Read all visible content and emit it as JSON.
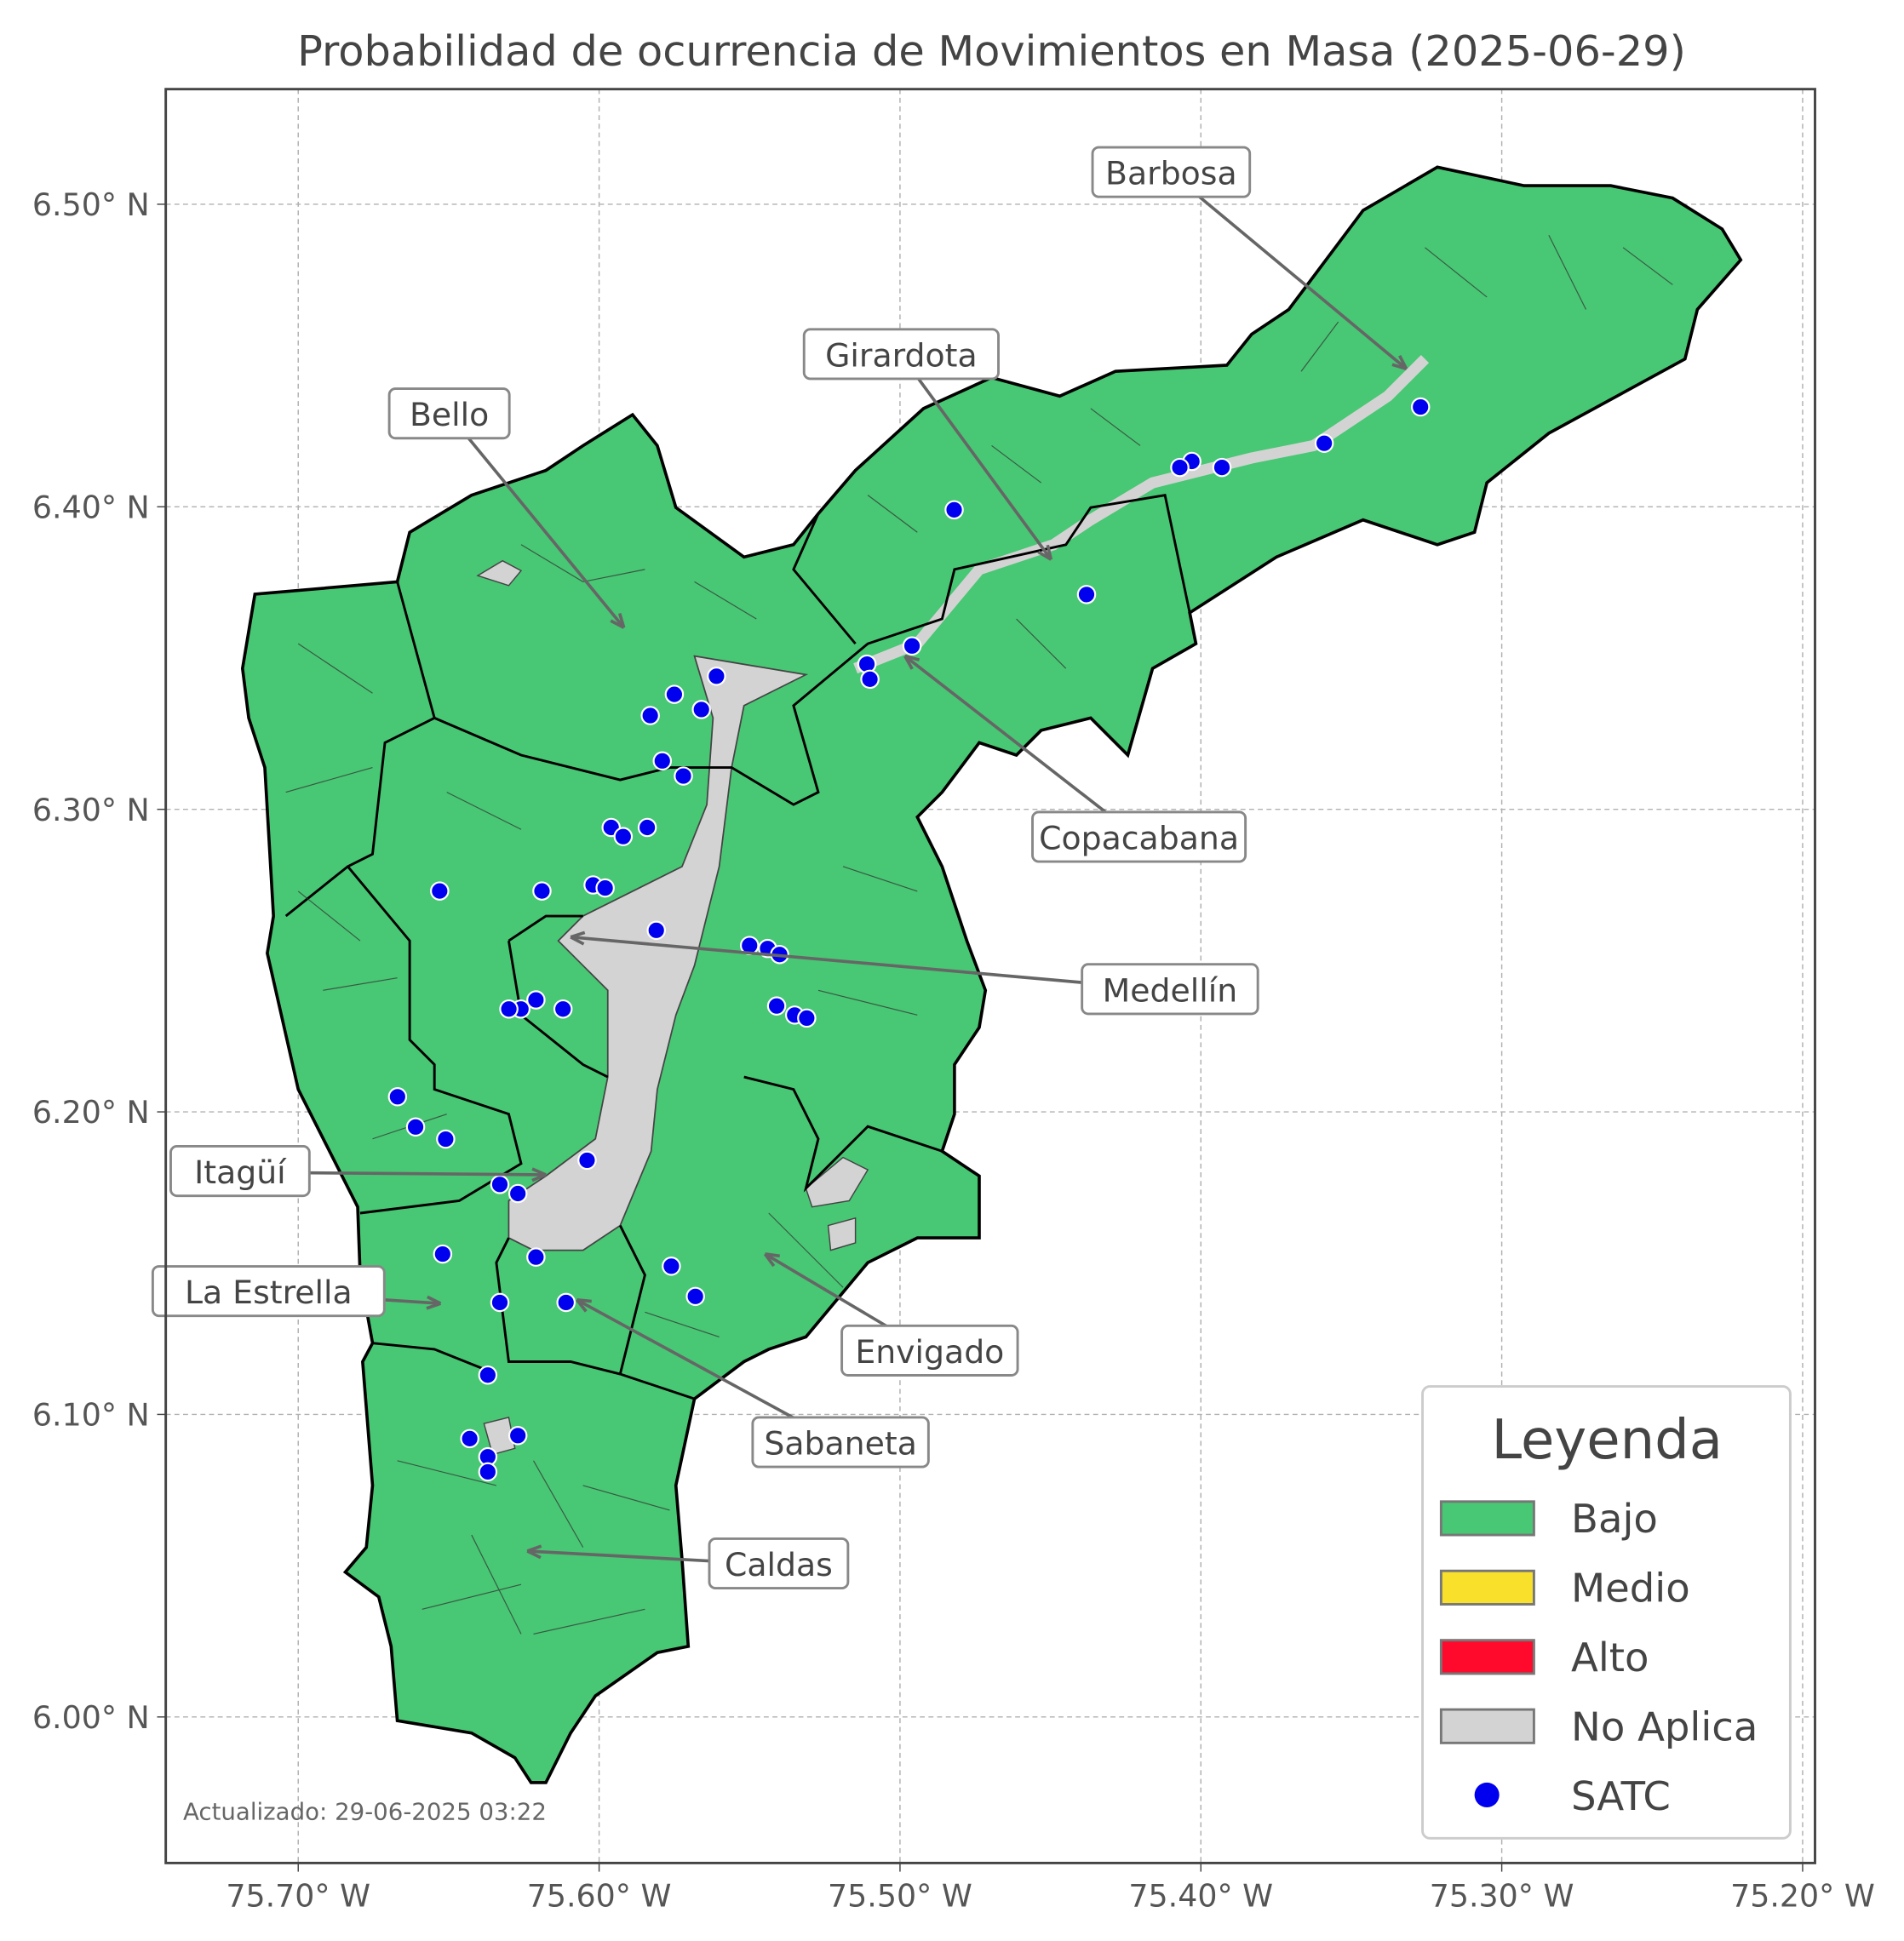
{
  "title": "Probabilidad de ocurrencia de Movimientos en Masa (2025-06-29)",
  "footer": "Actualizado: 29-06-2025 03:22",
  "axes": {
    "x_ticks": [
      "75.70° W",
      "75.60° W",
      "75.50° W",
      "75.40° W",
      "75.30° W",
      "75.20° W"
    ],
    "x_tick_values": [
      -75.7,
      -75.6,
      -75.5,
      -75.4,
      -75.3,
      -75.2
    ],
    "y_ticks": [
      "6.50° N",
      "6.40° N",
      "6.30° N",
      "6.20° N",
      "6.10° N",
      "6.00° N"
    ],
    "y_tick_values": [
      6.5,
      6.4,
      6.3,
      6.2,
      6.1,
      6.0
    ],
    "grid": true
  },
  "legend": {
    "title": "Leyenda",
    "items": [
      {
        "label": "Bajo",
        "color": "#48c774",
        "kind": "patch"
      },
      {
        "label": "Medio",
        "color": "#f9e02b",
        "kind": "patch"
      },
      {
        "label": "Alto",
        "color": "#ff0a2c",
        "kind": "patch"
      },
      {
        "label": "No Aplica",
        "color": "#d3d3d3",
        "kind": "patch"
      },
      {
        "label": "SATC",
        "color": "#0000ee",
        "kind": "dot"
      }
    ]
  },
  "municipalities": [
    {
      "name": "Barbosa",
      "risk": "Bajo"
    },
    {
      "name": "Girardota",
      "risk": "Bajo"
    },
    {
      "name": "Bello",
      "risk": "Bajo"
    },
    {
      "name": "Copacabana",
      "risk": "Bajo"
    },
    {
      "name": "Medellín",
      "risk": "Bajo"
    },
    {
      "name": "Itagüí",
      "risk": "Bajo"
    },
    {
      "name": "La Estrella",
      "risk": "Bajo"
    },
    {
      "name": "Envigado",
      "risk": "Bajo"
    },
    {
      "name": "Sabaneta",
      "risk": "Bajo"
    },
    {
      "name": "Caldas",
      "risk": "Bajo"
    }
  ],
  "satc_stations": [
    [
      -75.327,
      6.433
    ],
    [
      -75.359,
      6.421
    ],
    [
      -75.393,
      6.413
    ],
    [
      -75.403,
      6.415
    ],
    [
      -75.407,
      6.413
    ],
    [
      -75.482,
      6.399
    ],
    [
      -75.438,
      6.371
    ],
    [
      -75.496,
      6.354
    ],
    [
      -75.511,
      6.348
    ],
    [
      -75.51,
      6.343
    ],
    [
      -75.561,
      6.344
    ],
    [
      -75.575,
      6.338
    ],
    [
      -75.566,
      6.333
    ],
    [
      -75.583,
      6.331
    ],
    [
      -75.579,
      6.316
    ],
    [
      -75.572,
      6.311
    ],
    [
      -75.596,
      6.294
    ],
    [
      -75.592,
      6.291
    ],
    [
      -75.584,
      6.294
    ],
    [
      -75.619,
      6.273
    ],
    [
      -75.653,
      6.273
    ],
    [
      -75.602,
      6.275
    ],
    [
      -75.598,
      6.274
    ],
    [
      -75.581,
      6.26
    ],
    [
      -75.55,
      6.255
    ],
    [
      -75.544,
      6.254
    ],
    [
      -75.54,
      6.252
    ],
    [
      -75.541,
      6.235
    ],
    [
      -75.535,
      6.232
    ],
    [
      -75.531,
      6.231
    ],
    [
      -75.621,
      6.237
    ],
    [
      -75.626,
      6.234
    ],
    [
      -75.63,
      6.234
    ],
    [
      -75.612,
      6.234
    ],
    [
      -75.667,
      6.205
    ],
    [
      -75.661,
      6.195
    ],
    [
      -75.651,
      6.191
    ],
    [
      -75.604,
      6.184
    ],
    [
      -75.633,
      6.176
    ],
    [
      -75.627,
      6.173
    ],
    [
      -75.652,
      6.153
    ],
    [
      -75.621,
      6.152
    ],
    [
      -75.576,
      6.149
    ],
    [
      -75.568,
      6.139
    ],
    [
      -75.633,
      6.137
    ],
    [
      -75.611,
      6.137
    ],
    [
      -75.637,
      6.113
    ],
    [
      -75.643,
      6.092
    ],
    [
      -75.627,
      6.093
    ],
    [
      -75.637,
      6.086
    ],
    [
      -75.637,
      6.081
    ]
  ],
  "colors": {
    "bajo": "#48c774",
    "no_aplica": "#d3d3d3",
    "satc": "#0000ee",
    "text": "#444444"
  }
}
